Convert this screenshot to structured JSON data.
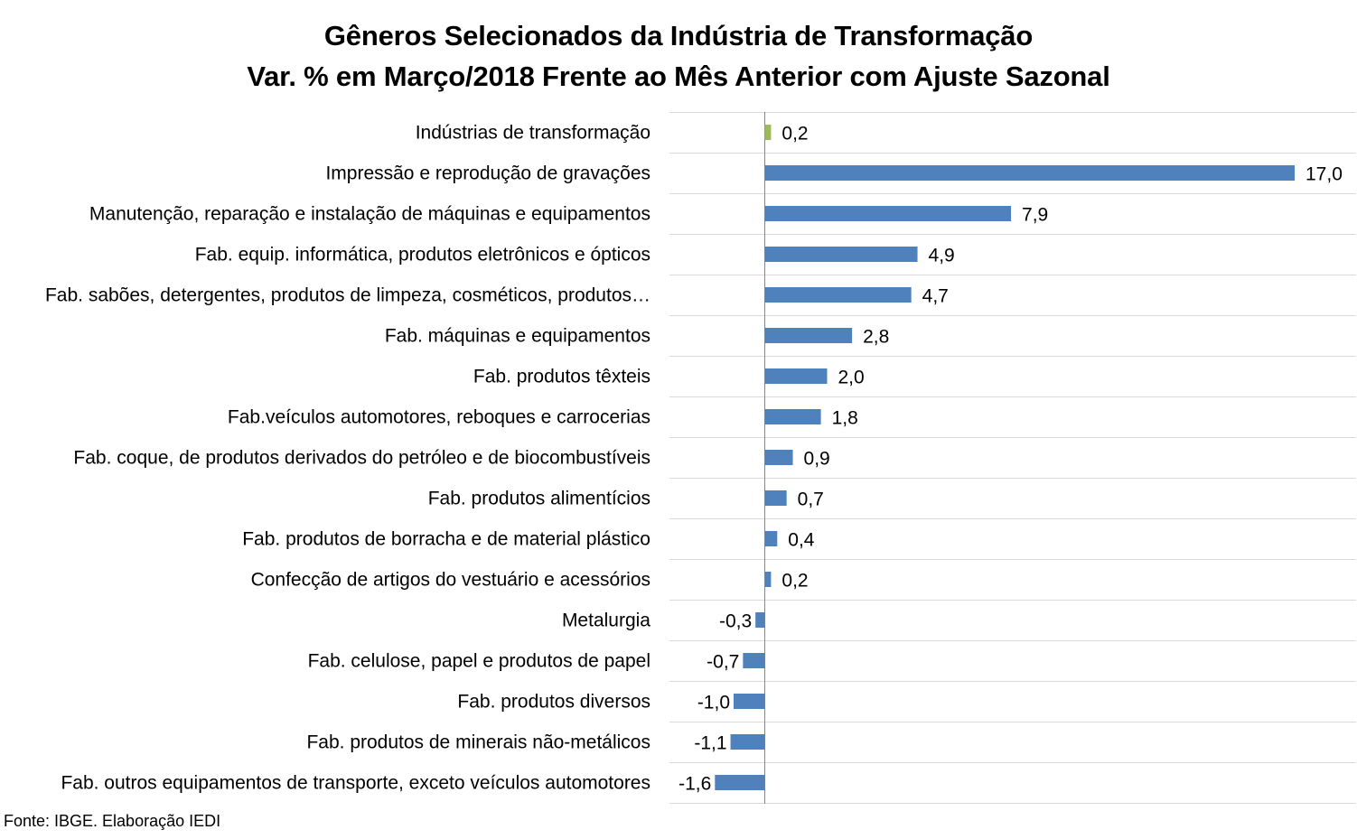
{
  "title": "Gêneros Selecionados da Indústria de Transformação",
  "subtitle": "Var. % em Março/2018 Frente ao Mês Anterior com Ajuste Sazonal",
  "source": "Fonte: IBGE. Elaboração IEDI",
  "colors": {
    "bar": "#4f81bd",
    "highlight": "#9bbb59",
    "grid": "#d9d9d9",
    "axis": "#868686"
  },
  "chart_data": {
    "type": "bar",
    "orientation": "horizontal",
    "title": "Gêneros Selecionados da Indústria de Transformação",
    "subtitle": "Var. % em Março/2018 Frente ao Mês Anterior com Ajuste Sazonal",
    "grid": true,
    "categories": [
      "Indústrias de transformação",
      "Impressão e reprodução de gravações",
      "Manutenção, reparação e instalação de máquinas e equipamentos",
      "Fab. equip. informática, produtos eletrônicos e ópticos",
      "Fab. sabões, detergentes, produtos de limpeza, cosméticos, produtos…",
      "Fab. máquinas e equipamentos",
      "Fab. produtos têxteis",
      "Fab.veículos automotores, reboques e carrocerias",
      "Fab. coque, de produtos derivados do petróleo e de biocombustíveis",
      "Fab. produtos alimentícios",
      "Fab. produtos de borracha e de material plástico",
      "Confecção de artigos do vestuário e acessórios",
      "Metalurgia",
      "Fab. celulose, papel e produtos de papel",
      "Fab. produtos diversos",
      "Fab. produtos de minerais não-metálicos",
      "Fab. outros equipamentos de transporte, exceto veículos automotores"
    ],
    "values": [
      0.2,
      17.0,
      7.9,
      4.9,
      4.7,
      2.8,
      2.0,
      1.8,
      0.9,
      0.7,
      0.4,
      0.2,
      -0.3,
      -0.7,
      -1.0,
      -1.1,
      -1.6
    ],
    "value_labels": [
      "0,2",
      "17,0",
      "7,9",
      "4,9",
      "4,7",
      "2,8",
      "2,0",
      "1,8",
      "0,9",
      "0,7",
      "0,4",
      "0,2",
      "-0,3",
      "-0,7",
      "-1,0",
      "-1,1",
      "-1,6"
    ],
    "highlight_index": 0
  }
}
